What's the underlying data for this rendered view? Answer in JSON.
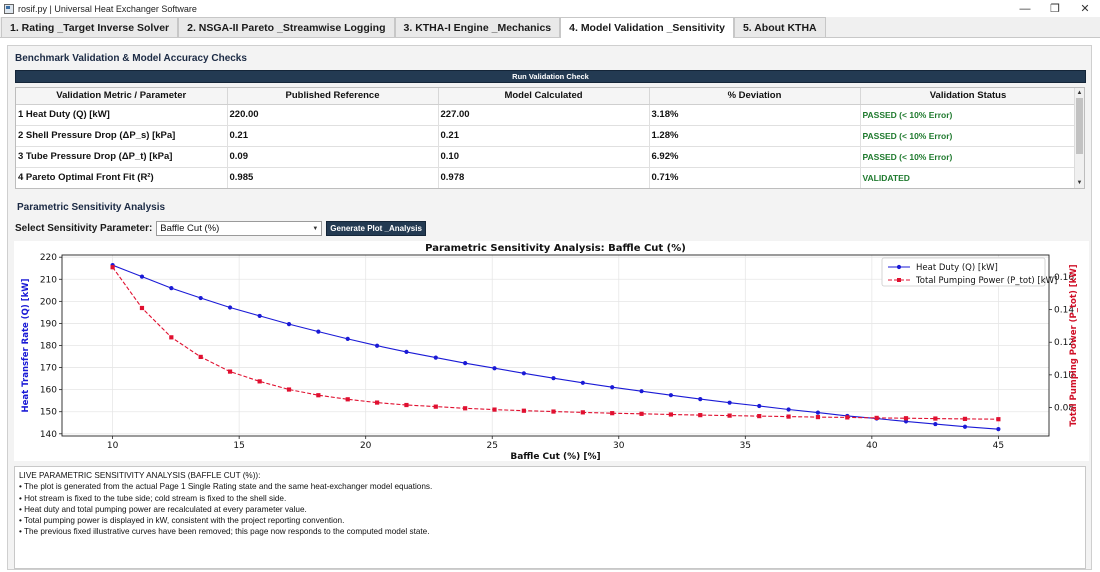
{
  "window": {
    "title": "rosif.py | Universal Heat Exchanger Software",
    "minimize": "—",
    "maximize": "❐",
    "close": "✕"
  },
  "tabs": [
    {
      "label": "1. Rating _Target Inverse Solver"
    },
    {
      "label": "2. NSGA-II Pareto _Streamwise Logging"
    },
    {
      "label": "3. KTHA-I Engine _Mechanics"
    },
    {
      "label": "4. Model Validation _Sensitivity"
    },
    {
      "label": "5. About KTHA"
    }
  ],
  "validation": {
    "section_title": "Benchmark Validation & Model Accuracy Checks",
    "run_button": "Run Validation Check",
    "columns": [
      "Validation Metric / Parameter",
      "Published Reference",
      "Model Calculated",
      "% Deviation",
      "Validation Status"
    ],
    "rows": [
      {
        "metric": "1 Heat Duty (Q) [kW]",
        "reference": "220.00",
        "calculated": "227.00",
        "deviation": "3.18%",
        "status": "PASSED (< 10% Error)"
      },
      {
        "metric": "2 Shell Pressure Drop (ΔP_s) [kPa]",
        "reference": "0.21",
        "calculated": "0.21",
        "deviation": "1.28%",
        "status": "PASSED (< 10% Error)"
      },
      {
        "metric": "3 Tube Pressure Drop (ΔP_t) [kPa]",
        "reference": "0.09",
        "calculated": "0.10",
        "deviation": "6.92%",
        "status": "PASSED (< 10% Error)"
      },
      {
        "metric": "4 Pareto Optimal Front Fit (R²)",
        "reference": "0.985",
        "calculated": "0.978",
        "deviation": "0.71%",
        "status": "VALIDATED"
      }
    ]
  },
  "sensitivity": {
    "section_title": "Parametric Sensitivity Analysis",
    "select_label": "Select Sensitivity Parameter:",
    "selected_value": "Baffle Cut (%)",
    "generate_button": "Generate Plot _Analysis"
  },
  "chart_data": {
    "type": "line",
    "title": "Parametric Sensitivity Analysis: Baffle Cut (%)",
    "xlabel": "Baffle Cut (%) [%]",
    "ylabel_left": "Heat Transfer Rate (Q) [kW]",
    "ylabel_right": "Total Pumping Power (P_tot) [kW]",
    "xlim": [
      8,
      47
    ],
    "ylim_left": [
      139,
      221
    ],
    "ylim_right": [
      0.0625,
      0.1735
    ],
    "xticks": [
      10,
      15,
      20,
      25,
      30,
      35,
      40,
      45
    ],
    "yticks_left": [
      140,
      150,
      160,
      170,
      180,
      190,
      200,
      210,
      220
    ],
    "yticks_right": [
      0.08,
      0.1,
      0.12,
      0.14,
      0.16
    ],
    "legend_position": "top-right",
    "grid": true,
    "x": [
      10.0,
      11.16,
      12.32,
      13.48,
      14.64,
      15.81,
      16.97,
      18.13,
      19.29,
      20.45,
      21.61,
      22.77,
      23.93,
      25.09,
      26.25,
      27.42,
      28.58,
      29.74,
      30.9,
      32.06,
      33.22,
      34.38,
      35.55,
      36.71,
      37.87,
      39.03,
      40.19,
      41.35,
      42.51,
      43.68,
      45.0
    ],
    "series": [
      {
        "name": "Heat Duty (Q) [kW]",
        "axis": "left",
        "color": "#1a1ad6",
        "style": "solid",
        "marker": "circle",
        "values": [
          216.4,
          211.2,
          206.0,
          201.5,
          197.2,
          193.4,
          189.7,
          186.3,
          183.0,
          179.9,
          177.1,
          174.5,
          172.0,
          169.7,
          167.4,
          165.2,
          163.1,
          161.1,
          159.3,
          157.5,
          155.7,
          154.1,
          152.6,
          151.0,
          149.6,
          148.1,
          146.9,
          145.6,
          144.4,
          143.2,
          142.1
        ]
      },
      {
        "name": "Total Pumping Power (P_tot) [kW]",
        "axis": "right",
        "color": "#e01030",
        "style": "dashed",
        "marker": "square",
        "values": [
          0.166,
          0.141,
          0.123,
          0.111,
          0.102,
          0.096,
          0.091,
          0.0875,
          0.085,
          0.083,
          0.0815,
          0.0805,
          0.0795,
          0.0787,
          0.078,
          0.0775,
          0.077,
          0.0765,
          0.0761,
          0.0757,
          0.0753,
          0.075,
          0.0747,
          0.0744,
          0.0741,
          0.0739,
          0.0736,
          0.0734,
          0.0732,
          0.073,
          0.0728
        ]
      }
    ]
  },
  "log": {
    "lines": [
      "LIVE PARAMETRIC SENSITIVITY ANALYSIS (BAFFLE CUT (%)):",
      "• The plot is generated from the actual Page 1 Single Rating state and the same heat-exchanger model equations.",
      "• Hot stream is fixed to the tube side; cold stream is fixed to the shell side.",
      "• Heat duty and total pumping power are recalculated at every parameter value.",
      "• Total pumping power is displayed in kW, consistent with the project reporting convention.",
      "• The previous fixed illustrative curves have been removed; this page now responds to the computed model state."
    ]
  }
}
